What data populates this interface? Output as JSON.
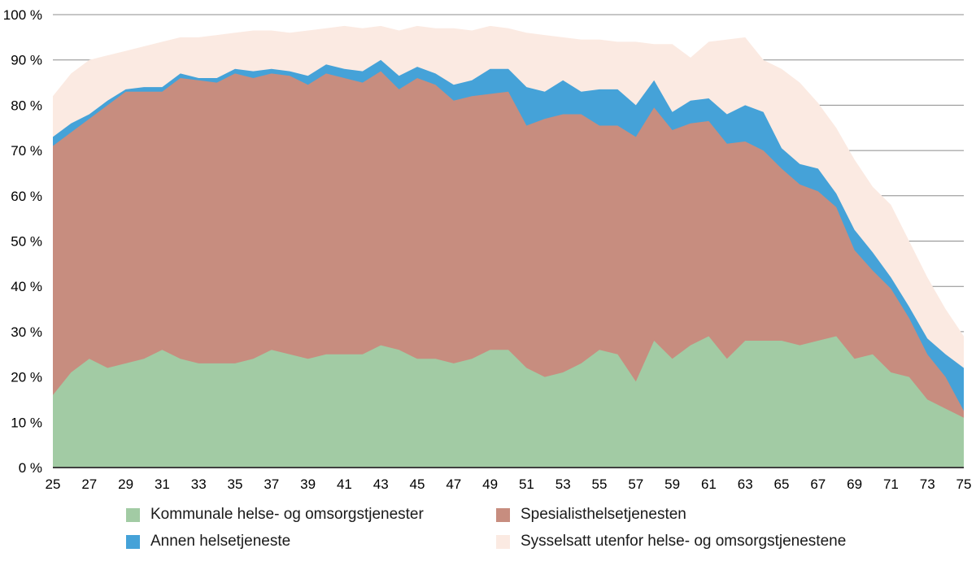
{
  "chart_data": {
    "type": "area",
    "stacked": true,
    "title": "",
    "xlabel": "",
    "ylabel": "",
    "ylim": [
      0,
      100
    ],
    "grid": true,
    "legend_position": "bottom",
    "x": [
      25,
      26,
      27,
      28,
      29,
      30,
      31,
      32,
      33,
      34,
      35,
      36,
      37,
      38,
      39,
      40,
      41,
      42,
      43,
      44,
      45,
      46,
      47,
      48,
      49,
      50,
      51,
      52,
      53,
      54,
      55,
      56,
      57,
      58,
      59,
      60,
      61,
      62,
      63,
      64,
      65,
      66,
      67,
      68,
      69,
      70,
      71,
      72,
      73,
      74,
      75
    ],
    "xticks": [
      25,
      27,
      29,
      31,
      33,
      35,
      37,
      39,
      41,
      43,
      45,
      47,
      49,
      51,
      53,
      55,
      57,
      59,
      61,
      63,
      65,
      67,
      69,
      71,
      73,
      75
    ],
    "yticks": [
      "0 %",
      "10 %",
      "20 %",
      "30 %",
      "40 %",
      "50 %",
      "60 %",
      "70 %",
      "80 %",
      "90 %",
      "100 %"
    ],
    "series": [
      {
        "name": "Kommunale helse- og omsorgstjenester",
        "color": "#a2cba4",
        "values": [
          16,
          21,
          24,
          22,
          23,
          24,
          26,
          24,
          23,
          23,
          23,
          24,
          26,
          25,
          24,
          25,
          25,
          25,
          27,
          26,
          24,
          24,
          23,
          24,
          26,
          26,
          22,
          20,
          21,
          23,
          26,
          25,
          19,
          28,
          24,
          27,
          29,
          24,
          28,
          28,
          28,
          27,
          28,
          29,
          24,
          25,
          21,
          20,
          15,
          13,
          11
        ]
      },
      {
        "name": "Spesialisthelsetjenesten",
        "color": "#c78d7f",
        "values": [
          55,
          53,
          53,
          58,
          60,
          59,
          57,
          62,
          62.5,
          62,
          64,
          62,
          61,
          61.5,
          60.5,
          62,
          61,
          60,
          60.5,
          57.5,
          62,
          60.5,
          58,
          58,
          56.5,
          57,
          53.5,
          57,
          57,
          55,
          49.5,
          50.5,
          54,
          51.5,
          50.5,
          49,
          47.5,
          47.5,
          44,
          42,
          38,
          35.5,
          33,
          28.5,
          24,
          18.5,
          18.5,
          13,
          10,
          7,
          1.5
        ]
      },
      {
        "name": "Annen helsetjeneste",
        "color": "#45a2d8",
        "values": [
          2,
          2,
          1,
          1,
          0.5,
          1,
          1,
          1,
          0.5,
          1,
          1,
          1.5,
          1,
          1,
          2,
          2,
          2,
          2.5,
          2.5,
          3,
          2.5,
          2.5,
          3.5,
          3.5,
          5.5,
          5,
          8.5,
          6,
          7.5,
          5,
          8,
          8,
          7,
          6,
          4,
          5,
          5,
          6.5,
          8,
          8.5,
          4.5,
          4.5,
          5,
          3,
          4.5,
          4,
          2.5,
          2.5,
          3.5,
          5,
          9.5
        ]
      },
      {
        "name": "Sysselsatt utenfor helse- og omsorgstjenestene",
        "color": "#fbeae2",
        "values": [
          9,
          11,
          12,
          10,
          8.5,
          9,
          10,
          8,
          9,
          9.5,
          8,
          9,
          8.5,
          8.5,
          10,
          8,
          9.5,
          9.5,
          7.5,
          10,
          9,
          10,
          12.5,
          11,
          9.5,
          9,
          12,
          12.5,
          9.5,
          11.5,
          11,
          10.5,
          14,
          8,
          15,
          9.5,
          12.5,
          16.5,
          15,
          11.5,
          17.5,
          18,
          14.5,
          14.5,
          15.5,
          14.5,
          16,
          14.5,
          13.5,
          10,
          7
        ]
      }
    ],
    "styles": {
      "gridline_color": "#8c8c8c",
      "baseline_color": "#404040",
      "tick_label_color": "#000000",
      "tick_label_size": 17
    }
  }
}
